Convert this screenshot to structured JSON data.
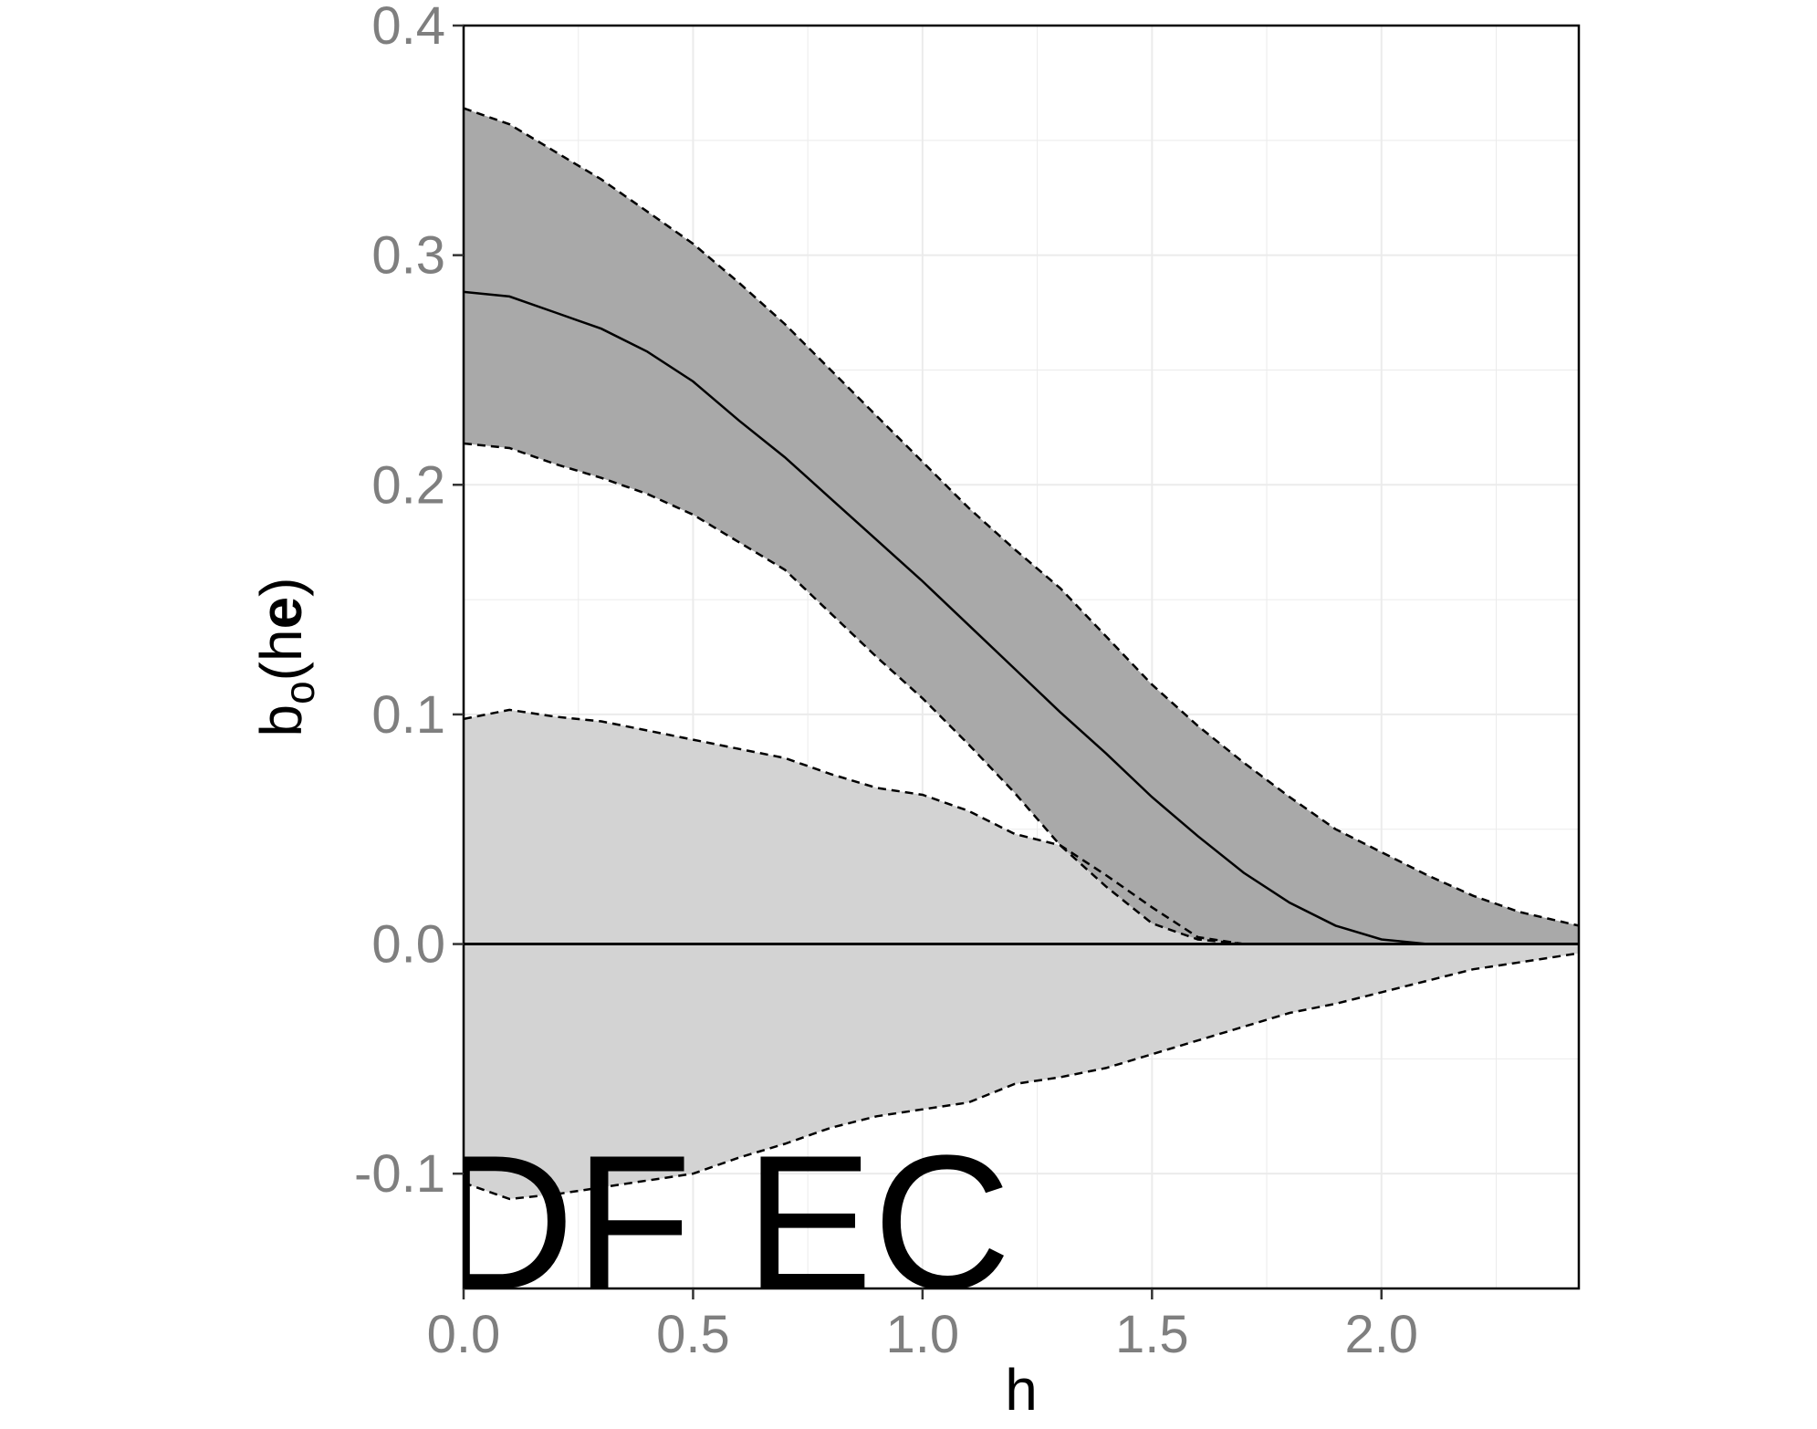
{
  "chart_data": {
    "type": "area",
    "xlabel": "h",
    "ylabel_parts": {
      "main": "b",
      "subscript": "o",
      "open": "(h",
      "bold": "e",
      "close": ")"
    },
    "xlim": [
      0,
      2.43
    ],
    "ylim": [
      -0.15,
      0.4
    ],
    "xticks": [
      0.0,
      0.5,
      1.0,
      1.5,
      2.0
    ],
    "xtick_labels": [
      "0.0",
      "0.5",
      "1.0",
      "1.5",
      "2.0"
    ],
    "yticks": [
      -0.1,
      0.0,
      0.1,
      0.2,
      0.3,
      0.4
    ],
    "ytick_labels": [
      "-0.1",
      "0.0",
      "0.1",
      "0.2",
      "0.3",
      "0.4"
    ],
    "grid": true,
    "reference_line_y": 0.0,
    "x": [
      0.0,
      0.1,
      0.2,
      0.3,
      0.4,
      0.5,
      0.6,
      0.7,
      0.8,
      0.9,
      1.0,
      1.1,
      1.2,
      1.3,
      1.4,
      1.5,
      1.6,
      1.7,
      1.8,
      1.9,
      2.0,
      2.1,
      2.2,
      2.3,
      2.43
    ],
    "series": [
      {
        "role": "estimate",
        "style": "solid",
        "values": [
          0.284,
          0.282,
          0.275,
          0.268,
          0.258,
          0.245,
          0.228,
          0.212,
          0.194,
          0.176,
          0.158,
          0.139,
          0.12,
          0.101,
          0.083,
          0.064,
          0.047,
          0.031,
          0.018,
          0.008,
          0.002,
          0.0,
          0.0,
          0.0,
          0.0
        ]
      },
      {
        "role": "estimate upper band",
        "style": "dashed",
        "values": [
          0.364,
          0.357,
          0.345,
          0.333,
          0.319,
          0.305,
          0.288,
          0.27,
          0.25,
          0.23,
          0.21,
          0.19,
          0.172,
          0.155,
          0.134,
          0.113,
          0.095,
          0.079,
          0.064,
          0.05,
          0.04,
          0.03,
          0.021,
          0.014,
          0.008
        ]
      },
      {
        "role": "estimate lower band",
        "style": "dashed",
        "values": [
          0.218,
          0.216,
          0.209,
          0.203,
          0.196,
          0.187,
          0.175,
          0.163,
          0.144,
          0.125,
          0.107,
          0.087,
          0.066,
          0.043,
          0.025,
          0.009,
          0.002,
          0.0,
          0.0,
          0.0,
          0.0,
          0.0,
          0.0,
          0.0,
          0.0
        ]
      },
      {
        "role": "reference envelope upper",
        "style": "dashed",
        "values": [
          0.098,
          0.102,
          0.099,
          0.097,
          0.093,
          0.089,
          0.085,
          0.081,
          0.074,
          0.068,
          0.065,
          0.058,
          0.048,
          0.043,
          0.03,
          0.016,
          0.003,
          0.0,
          0.0,
          0.0,
          0.0,
          0.0,
          0.0,
          0.0,
          0.0
        ]
      },
      {
        "role": "reference envelope lower",
        "style": "dashed",
        "values": [
          -0.104,
          -0.111,
          -0.109,
          -0.106,
          -0.103,
          -0.1,
          -0.093,
          -0.087,
          -0.08,
          -0.075,
          -0.072,
          -0.069,
          -0.061,
          -0.058,
          -0.054,
          -0.048,
          -0.042,
          -0.036,
          -0.03,
          -0.026,
          -0.021,
          -0.016,
          -0.011,
          -0.008,
          -0.004
        ]
      }
    ],
    "colors": {
      "estimate_band": "#a9a9a9",
      "reference_envelope": "#d3d3d3",
      "lines": "#000000",
      "tick_labels": "#7f7f7f",
      "grid": "#ebebeb"
    }
  },
  "overlay_text": "DF EC"
}
